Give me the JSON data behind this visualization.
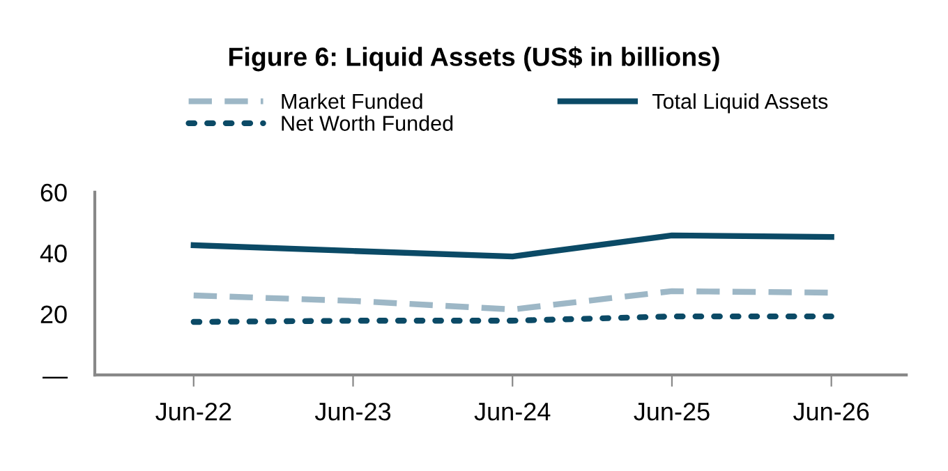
{
  "chart_data": {
    "type": "line",
    "title": "Figure 6: Liquid Assets (US$ in billions)",
    "categories": [
      "Jun-22",
      "Jun-23",
      "Jun-24",
      "Jun-25",
      "Jun-26"
    ],
    "series": [
      {
        "name": "Market Funded",
        "color": "#9db7c6",
        "line_style": "dashed",
        "values": [
          26.1,
          24.3,
          21.5,
          27.5,
          27.0
        ]
      },
      {
        "name": "Net Worth Funded",
        "color": "#0b4a66",
        "line_style": "dotted",
        "values": [
          17.4,
          17.8,
          17.8,
          19.2,
          19.2
        ]
      },
      {
        "name": "Total Liquid Assets",
        "color": "#0b4a66",
        "line_style": "solid",
        "values": [
          42.6,
          40.7,
          38.9,
          45.8,
          45.3
        ]
      }
    ],
    "ylim": [
      0,
      60
    ],
    "yticks": [
      {
        "value": 0,
        "label": "—"
      },
      20,
      40,
      60
    ],
    "grid": false,
    "legend": "top",
    "marker": "none"
  }
}
